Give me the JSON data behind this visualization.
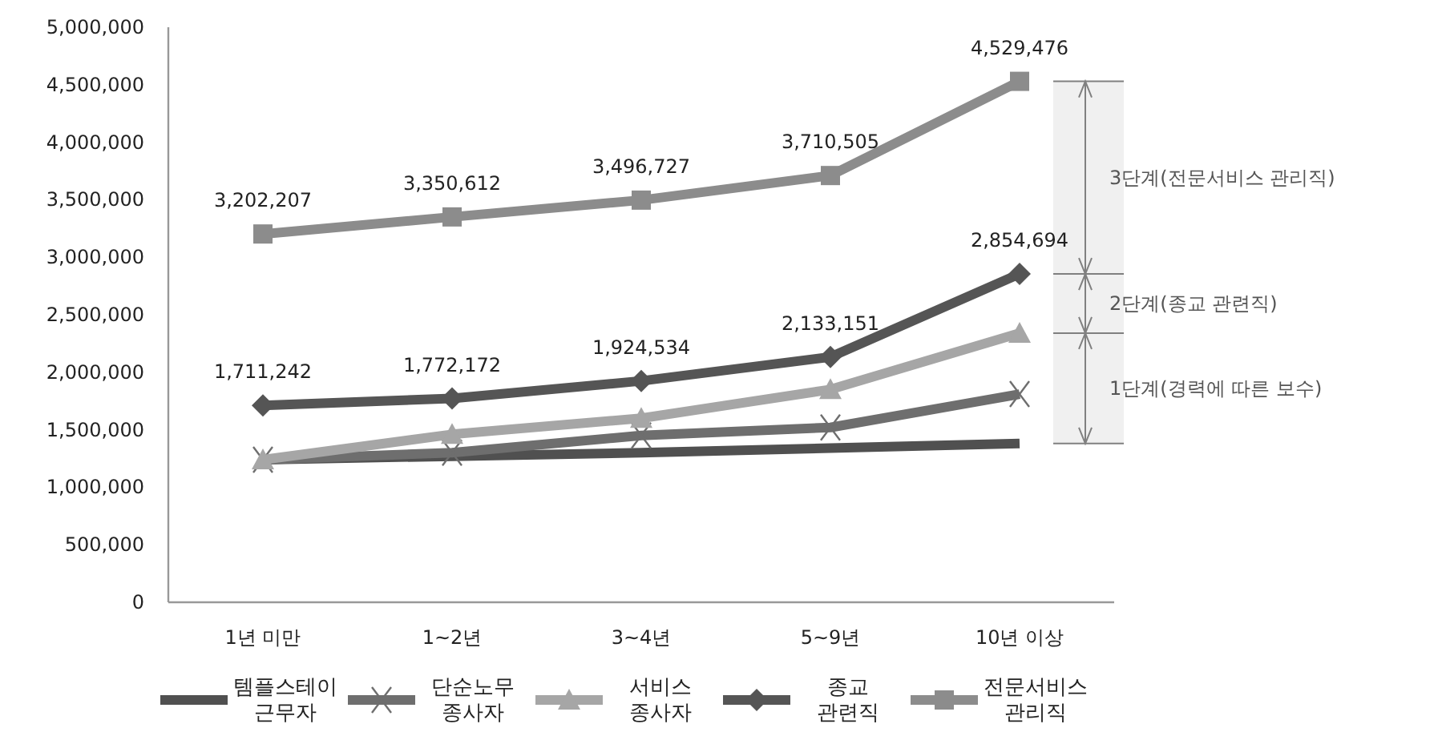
{
  "chart_data": {
    "type": "line",
    "categories": [
      "1년 미만",
      "1~2년",
      "3~4년",
      "5~9년",
      "10년 이상"
    ],
    "series": [
      {
        "name": "템플스테이 근무자",
        "color": "#505050",
        "marker": "none",
        "values": [
          1240000,
          1270000,
          1300000,
          1340000,
          1380000
        ]
      },
      {
        "name": "단순노무 종사자",
        "color": "#6e6e6e",
        "marker": "cross",
        "values": [
          1240000,
          1300000,
          1450000,
          1520000,
          1810000
        ]
      },
      {
        "name": "서비스 종사자",
        "color": "#a6a6a6",
        "marker": "triangle",
        "values": [
          1240000,
          1460000,
          1600000,
          1850000,
          2340000
        ]
      },
      {
        "name": "종교 관련직",
        "color": "#555555",
        "marker": "diamond",
        "values": [
          1711242,
          1772172,
          1924534,
          2133151,
          2854694
        ],
        "value_labels": [
          "1,711,242",
          "1,772,172",
          "1,924,534",
          "2,133,151",
          "2,854,694"
        ]
      },
      {
        "name": "전문서비스 관리직",
        "color": "#8c8c8c",
        "marker": "square",
        "values": [
          3202207,
          3350612,
          3496727,
          3710505,
          4529476
        ],
        "value_labels": [
          "3,202,207",
          "3,350,612",
          "3,496,727",
          "3,710,505",
          "4,529,476"
        ]
      }
    ],
    "ylim": [
      0,
      5000000
    ],
    "yticks": [
      {
        "value": 0,
        "label": "0"
      },
      {
        "value": 500000,
        "label": "500,000"
      },
      {
        "value": 1000000,
        "label": "1,000,000"
      },
      {
        "value": 1500000,
        "label": "1,500,000"
      },
      {
        "value": 2000000,
        "label": "2,000,000"
      },
      {
        "value": 2500000,
        "label": "2,500,000"
      },
      {
        "value": 3000000,
        "label": "3,000,000"
      },
      {
        "value": 3500000,
        "label": "3,500,000"
      },
      {
        "value": 4000000,
        "label": "4,000,000"
      },
      {
        "value": 4500000,
        "label": "4,500,000"
      },
      {
        "value": 5000000,
        "label": "5,000,000"
      }
    ],
    "bands": [
      {
        "axis": "y",
        "from": 2854694,
        "to": 4529476,
        "label": "3단계(전문서비스 관리직)",
        "color": "#808080"
      },
      {
        "axis": "y",
        "from": 2340000,
        "to": 2854694,
        "label": "2단계(종교 관련직)",
        "color": "#808080"
      },
      {
        "axis": "y",
        "from": 1380000,
        "to": 2340000,
        "label": "1단계(경력에 따른 보수)",
        "color": "#808080"
      }
    ],
    "grid": false,
    "legend": "bottom",
    "line_style": "solid"
  }
}
